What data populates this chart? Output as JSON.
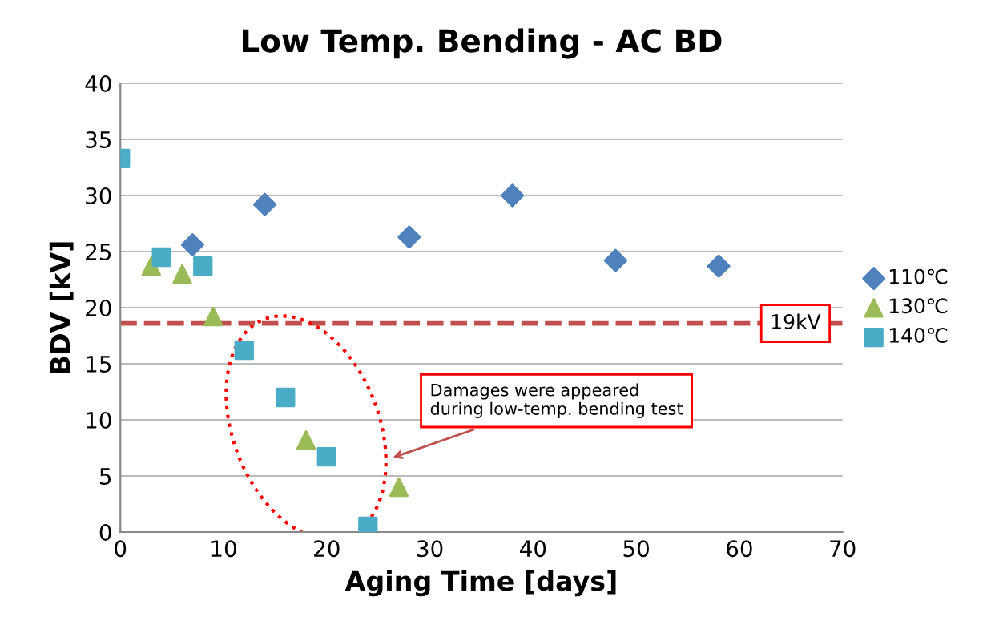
{
  "chart_data": {
    "type": "scatter",
    "title": "Low Temp. Bending - AC BD",
    "xlabel": "Aging Time [days]",
    "ylabel": "BDV [kV]",
    "xlim": [
      0,
      70
    ],
    "xticks": [
      0,
      10,
      20,
      30,
      40,
      50,
      60,
      70
    ],
    "ylim": [
      0,
      40
    ],
    "yticks": [
      0,
      5,
      10,
      15,
      20,
      25,
      30,
      35,
      40
    ],
    "grid": "y",
    "legend": "right",
    "series": [
      {
        "name": "110℃",
        "color": "#4f81bd",
        "marker": "diamond",
        "x": [
          7,
          14,
          28,
          38,
          48,
          58
        ],
        "values": [
          25.6,
          29.2,
          26.3,
          30,
          24.2,
          23.7
        ]
      },
      {
        "name": "130℃",
        "color": "#9bbb59",
        "marker": "triangle",
        "x": [
          3,
          6,
          9,
          12,
          18,
          27
        ],
        "values": [
          23.7,
          23,
          19.2,
          null,
          8.2,
          4
        ]
      },
      {
        "name": "140℃",
        "color": "#4bacc6",
        "marker": "square",
        "x": [
          0,
          4,
          8,
          12,
          16,
          20,
          24
        ],
        "values": [
          33.3,
          24.5,
          23.7,
          16.2,
          12,
          6.7,
          0.5
        ]
      }
    ],
    "ref_lines": [
      {
        "axis": "y",
        "value": 18.6,
        "label": "19kV",
        "color": "#c0504d",
        "line_style": "dashed"
      }
    ],
    "annotations": [
      "Damages were appeared\nduring low-temp. bending test"
    ]
  }
}
